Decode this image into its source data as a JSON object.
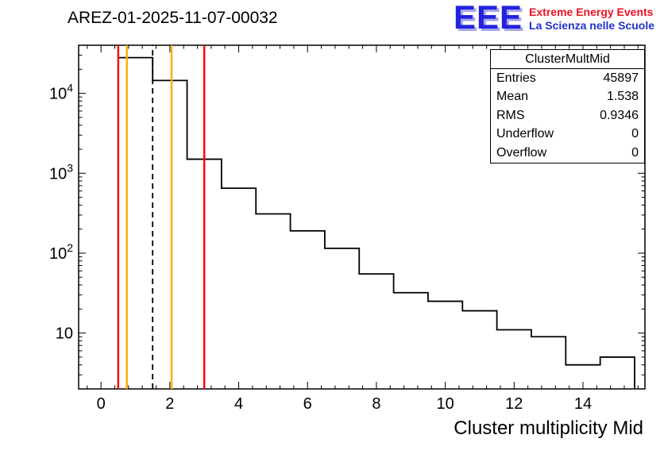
{
  "title": "AREZ-01-2025-11-07-00032",
  "logo": {
    "acronym": "EEE",
    "tagline_top": "Extreme Energy Events",
    "tagline_bottom": "La Scienza nelle Scuole",
    "colors": {
      "acronym": "#2222dd",
      "shadow": "#a6a6ec",
      "tagline_top": "#ee1122",
      "tagline_bottom": "#2233cc"
    }
  },
  "stats_box": {
    "title": "ClusterMultMid",
    "rows": [
      {
        "label": "Entries",
        "value": "45897"
      },
      {
        "label": "Mean",
        "value": "1.538"
      },
      {
        "label": "RMS",
        "value": "0.9346"
      },
      {
        "label": "Underflow",
        "value": "0"
      },
      {
        "label": "Overflow",
        "value": "0"
      }
    ]
  },
  "chart_data": {
    "type": "bar",
    "subtype": "step-histogram",
    "title": "AREZ-01-2025-11-07-00032",
    "xlabel": "Cluster multiplicity Mid",
    "ylabel": "",
    "y_scale": "log",
    "grid": false,
    "legend": "none",
    "bin_edges": [
      0.5,
      1.5,
      2.5,
      3.5,
      4.5,
      5.5,
      6.5,
      7.5,
      8.5,
      9.5,
      10.5,
      11.5,
      12.5,
      13.5,
      14.5,
      15.5
    ],
    "bin_centers": [
      1,
      2,
      3,
      4,
      5,
      6,
      7,
      8,
      9,
      10,
      11,
      12,
      13,
      14,
      15
    ],
    "counts": [
      28000,
      14500,
      1500,
      650,
      310,
      190,
      115,
      55,
      32,
      25,
      19,
      11,
      9,
      4,
      5
    ],
    "xlim": [
      -0.65,
      15.8
    ],
    "ylim": [
      2.0,
      40000
    ],
    "x_major_ticks": [
      0,
      2,
      4,
      6,
      8,
      10,
      12,
      14
    ],
    "x_minor_step": 0.4,
    "y_tick_labels": [
      {
        "value": 10,
        "base": "10",
        "exp": ""
      },
      {
        "value": 100,
        "base": "10",
        "exp": "2"
      },
      {
        "value": 1000,
        "base": "10",
        "exp": "3"
      },
      {
        "value": 10000,
        "base": "10",
        "exp": "4"
      }
    ],
    "line_color": "#000000",
    "markers": [
      {
        "x": 0.5,
        "color": "#ff0000",
        "dash": false
      },
      {
        "x": 0.75,
        "color": "#ffaa00",
        "dash": false
      },
      {
        "x": 1.5,
        "color": "#000000",
        "dash": true
      },
      {
        "x": 2.05,
        "color": "#ffaa00",
        "dash": false
      },
      {
        "x": 3.0,
        "color": "#ff0000",
        "dash": false
      }
    ]
  }
}
